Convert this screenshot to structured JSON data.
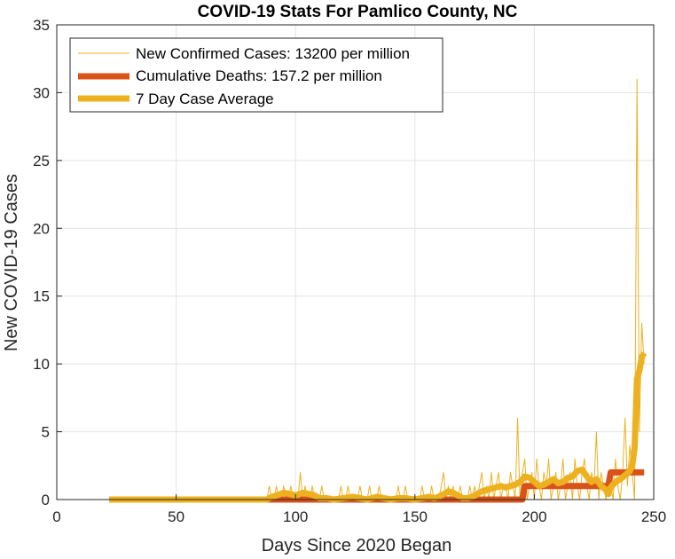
{
  "chart_data": {
    "type": "line",
    "title": "COVID-19 Stats For Pamlico County, NC",
    "xlabel": "Days Since 2020 Began",
    "ylabel": "New COVID-19 Cases",
    "xlim": [
      0,
      250
    ],
    "ylim": [
      0,
      35
    ],
    "xticks": [
      0,
      50,
      100,
      150,
      200,
      250
    ],
    "yticks": [
      0,
      5,
      10,
      15,
      20,
      25,
      30,
      35
    ],
    "grid": true,
    "legend_position": "top-left",
    "series": [
      {
        "name": "New Confirmed Cases: 13200 per million",
        "color": "#EDB120",
        "style": "thin-line",
        "points": [
          [
            22,
            0
          ],
          [
            88,
            0
          ],
          [
            89,
            1
          ],
          [
            90,
            0
          ],
          [
            91,
            0
          ],
          [
            92,
            1
          ],
          [
            93,
            0
          ],
          [
            94,
            0
          ],
          [
            95,
            1
          ],
          [
            96,
            0
          ],
          [
            97,
            0
          ],
          [
            98,
            1
          ],
          [
            99,
            0
          ],
          [
            100,
            0
          ],
          [
            101,
            0
          ],
          [
            102,
            2
          ],
          [
            103,
            0
          ],
          [
            104,
            1
          ],
          [
            105,
            0
          ],
          [
            106,
            0
          ],
          [
            107,
            1
          ],
          [
            108,
            0
          ],
          [
            110,
            0
          ],
          [
            111,
            1
          ],
          [
            112,
            0
          ],
          [
            118,
            0
          ],
          [
            119,
            1
          ],
          [
            120,
            0
          ],
          [
            121,
            0
          ],
          [
            122,
            1
          ],
          [
            123,
            0
          ],
          [
            126,
            0
          ],
          [
            127,
            1
          ],
          [
            128,
            0
          ],
          [
            130,
            0
          ],
          [
            131,
            1
          ],
          [
            132,
            0
          ],
          [
            134,
            0
          ],
          [
            135,
            1
          ],
          [
            136,
            0
          ],
          [
            142,
            0
          ],
          [
            143,
            1
          ],
          [
            144,
            0
          ],
          [
            145,
            0
          ],
          [
            146,
            1
          ],
          [
            147,
            0
          ],
          [
            152,
            0
          ],
          [
            153,
            1
          ],
          [
            154,
            0
          ],
          [
            156,
            0
          ],
          [
            157,
            1
          ],
          [
            158,
            0
          ],
          [
            160,
            0
          ],
          [
            161,
            1
          ],
          [
            162,
            2
          ],
          [
            163,
            0
          ],
          [
            164,
            1
          ],
          [
            165,
            0
          ],
          [
            166,
            1
          ],
          [
            167,
            0
          ],
          [
            168,
            0
          ],
          [
            169,
            1
          ],
          [
            170,
            0
          ],
          [
            172,
            0
          ],
          [
            173,
            1
          ],
          [
            174,
            0
          ],
          [
            175,
            1
          ],
          [
            176,
            0
          ],
          [
            177,
            1
          ],
          [
            178,
            2
          ],
          [
            179,
            0
          ],
          [
            180,
            1
          ],
          [
            181,
            0
          ],
          [
            182,
            2
          ],
          [
            183,
            0
          ],
          [
            184,
            1
          ],
          [
            185,
            2
          ],
          [
            186,
            0
          ],
          [
            187,
            1
          ],
          [
            188,
            1
          ],
          [
            189,
            0
          ],
          [
            190,
            2
          ],
          [
            191,
            1
          ],
          [
            192,
            0
          ],
          [
            193,
            6
          ],
          [
            194,
            0
          ],
          [
            195,
            2
          ],
          [
            196,
            3
          ],
          [
            197,
            0
          ],
          [
            198,
            1
          ],
          [
            199,
            2
          ],
          [
            200,
            0
          ],
          [
            201,
            3
          ],
          [
            202,
            1
          ],
          [
            203,
            0
          ],
          [
            204,
            2
          ],
          [
            205,
            1
          ],
          [
            206,
            3
          ],
          [
            207,
            0
          ],
          [
            208,
            1
          ],
          [
            209,
            2
          ],
          [
            210,
            0
          ],
          [
            211,
            1
          ],
          [
            212,
            3
          ],
          [
            213,
            0
          ],
          [
            214,
            1
          ],
          [
            215,
            2
          ],
          [
            216,
            0
          ],
          [
            217,
            3
          ],
          [
            218,
            1
          ],
          [
            219,
            0
          ],
          [
            220,
            2
          ],
          [
            221,
            3
          ],
          [
            222,
            1
          ],
          [
            223,
            0
          ],
          [
            224,
            2
          ],
          [
            225,
            1
          ],
          [
            226,
            5
          ],
          [
            227,
            0
          ],
          [
            228,
            2
          ],
          [
            229,
            1
          ],
          [
            230,
            0
          ],
          [
            231,
            2
          ],
          [
            232,
            1
          ],
          [
            233,
            0
          ],
          [
            234,
            3
          ],
          [
            235,
            1
          ],
          [
            236,
            0
          ],
          [
            237,
            2
          ],
          [
            238,
            6
          ],
          [
            239,
            1
          ],
          [
            240,
            4
          ],
          [
            241,
            2
          ],
          [
            242,
            0
          ],
          [
            243,
            31
          ],
          [
            244,
            5
          ],
          [
            245,
            13
          ],
          [
            246,
            10
          ]
        ]
      },
      {
        "name": "Cumulative Deaths: 157.2 per million",
        "color": "#D95319",
        "style": "thick-line",
        "points": [
          [
            22,
            0
          ],
          [
            195,
            0
          ],
          [
            196,
            1
          ],
          [
            231,
            1
          ],
          [
            232,
            2
          ],
          [
            246,
            2
          ]
        ]
      },
      {
        "name": "7 Day Case Average",
        "color": "#EDB120",
        "style": "thick-line",
        "points": [
          [
            22,
            0
          ],
          [
            88,
            0
          ],
          [
            90,
            0.2
          ],
          [
            92,
            0.3
          ],
          [
            95,
            0.5
          ],
          [
            98,
            0.4
          ],
          [
            100,
            0.3
          ],
          [
            103,
            0.5
          ],
          [
            106,
            0.4
          ],
          [
            108,
            0.3
          ],
          [
            110,
            0.1
          ],
          [
            113,
            0.1
          ],
          [
            116,
            0
          ],
          [
            120,
            0.1
          ],
          [
            124,
            0.2
          ],
          [
            127,
            0.1
          ],
          [
            130,
            0
          ],
          [
            134,
            0.2
          ],
          [
            137,
            0.1
          ],
          [
            140,
            0
          ],
          [
            143,
            0.1
          ],
          [
            146,
            0.1
          ],
          [
            150,
            0
          ],
          [
            153,
            0.1
          ],
          [
            156,
            0.2
          ],
          [
            158,
            0.1
          ],
          [
            160,
            0.2
          ],
          [
            162,
            0.4
          ],
          [
            164,
            0.6
          ],
          [
            166,
            0.5
          ],
          [
            168,
            0.3
          ],
          [
            170,
            0.1
          ],
          [
            172,
            0.1
          ],
          [
            174,
            0.2
          ],
          [
            176,
            0.4
          ],
          [
            178,
            0.6
          ],
          [
            180,
            0.7
          ],
          [
            182,
            0.8
          ],
          [
            184,
            0.9
          ],
          [
            186,
            1.0
          ],
          [
            188,
            0.9
          ],
          [
            190,
            1.0
          ],
          [
            192,
            1.1
          ],
          [
            194,
            1.3
          ],
          [
            196,
            1.7
          ],
          [
            198,
            1.6
          ],
          [
            200,
            1.3
          ],
          [
            202,
            1.0
          ],
          [
            204,
            1.1
          ],
          [
            206,
            1.3
          ],
          [
            208,
            1.5
          ],
          [
            210,
            1.2
          ],
          [
            212,
            1.3
          ],
          [
            214,
            1.6
          ],
          [
            216,
            1.7
          ],
          [
            218,
            2.1
          ],
          [
            220,
            2.2
          ],
          [
            222,
            1.7
          ],
          [
            224,
            1.3
          ],
          [
            226,
            1.5
          ],
          [
            228,
            1.0
          ],
          [
            230,
            0.7
          ],
          [
            231,
            0.4
          ],
          [
            232,
            0.9
          ],
          [
            234,
            1.3
          ],
          [
            236,
            1.5
          ],
          [
            238,
            1.8
          ],
          [
            240,
            2.1
          ],
          [
            241,
            2.5
          ],
          [
            242,
            3.8
          ],
          [
            243,
            8.9
          ],
          [
            244,
            9.5
          ],
          [
            245,
            10.5
          ],
          [
            246,
            10.8
          ]
        ]
      }
    ]
  }
}
